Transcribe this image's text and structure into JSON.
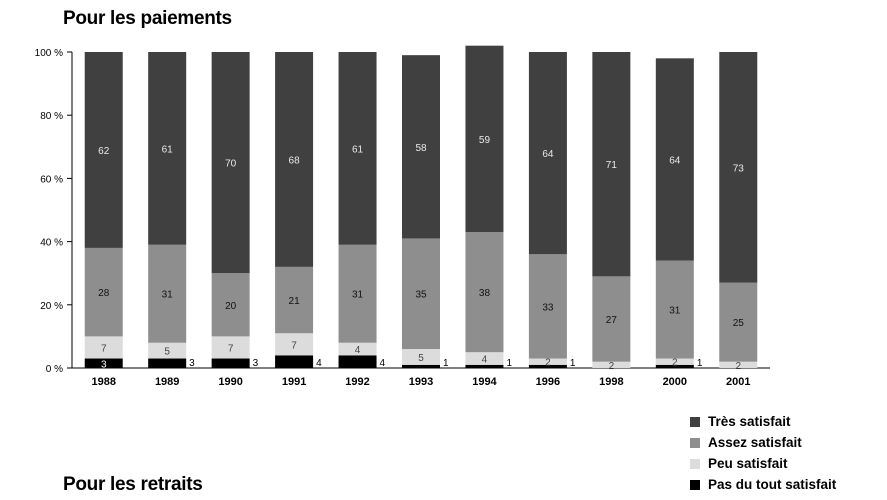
{
  "titles": {
    "chart1": "Pour les paiements",
    "chart2": "Pour les retraits"
  },
  "legend": [
    {
      "label": "Très satisfait",
      "color": "#404040"
    },
    {
      "label": "Assez satisfait",
      "color": "#8e8e8e"
    },
    {
      "label": "Peu satisfait",
      "color": "#dcdcdc"
    },
    {
      "label": "Pas du tout satisfait",
      "color": "#000000"
    }
  ],
  "chart_data": {
    "type": "bar",
    "stacked": true,
    "title": "Pour les paiements",
    "categories": [
      "1988",
      "1989",
      "1990",
      "1991",
      "1992",
      "1993",
      "1994",
      "1996",
      "1998",
      "2000",
      "2001"
    ],
    "ylim": [
      0,
      100
    ],
    "yticks": [
      "0 %",
      "20 %",
      "40 %",
      "60 %",
      "80 %",
      "100 %"
    ],
    "series": [
      {
        "name": "Pas du tout satisfait",
        "color": "#000000",
        "values": [
          3,
          3,
          3,
          4,
          4,
          1,
          1,
          1,
          0,
          1,
          0
        ]
      },
      {
        "name": "Peu satisfait",
        "color": "#dcdcdc",
        "values": [
          7,
          5,
          7,
          7,
          4,
          5,
          4,
          2,
          2,
          2,
          2
        ]
      },
      {
        "name": "Assez satisfait",
        "color": "#8e8e8e",
        "values": [
          28,
          31,
          20,
          21,
          31,
          35,
          38,
          33,
          27,
          31,
          25
        ]
      },
      {
        "name": "Très satisfait",
        "color": "#404040",
        "values": [
          62,
          61,
          70,
          68,
          61,
          58,
          59,
          64,
          71,
          64,
          73
        ]
      }
    ]
  }
}
